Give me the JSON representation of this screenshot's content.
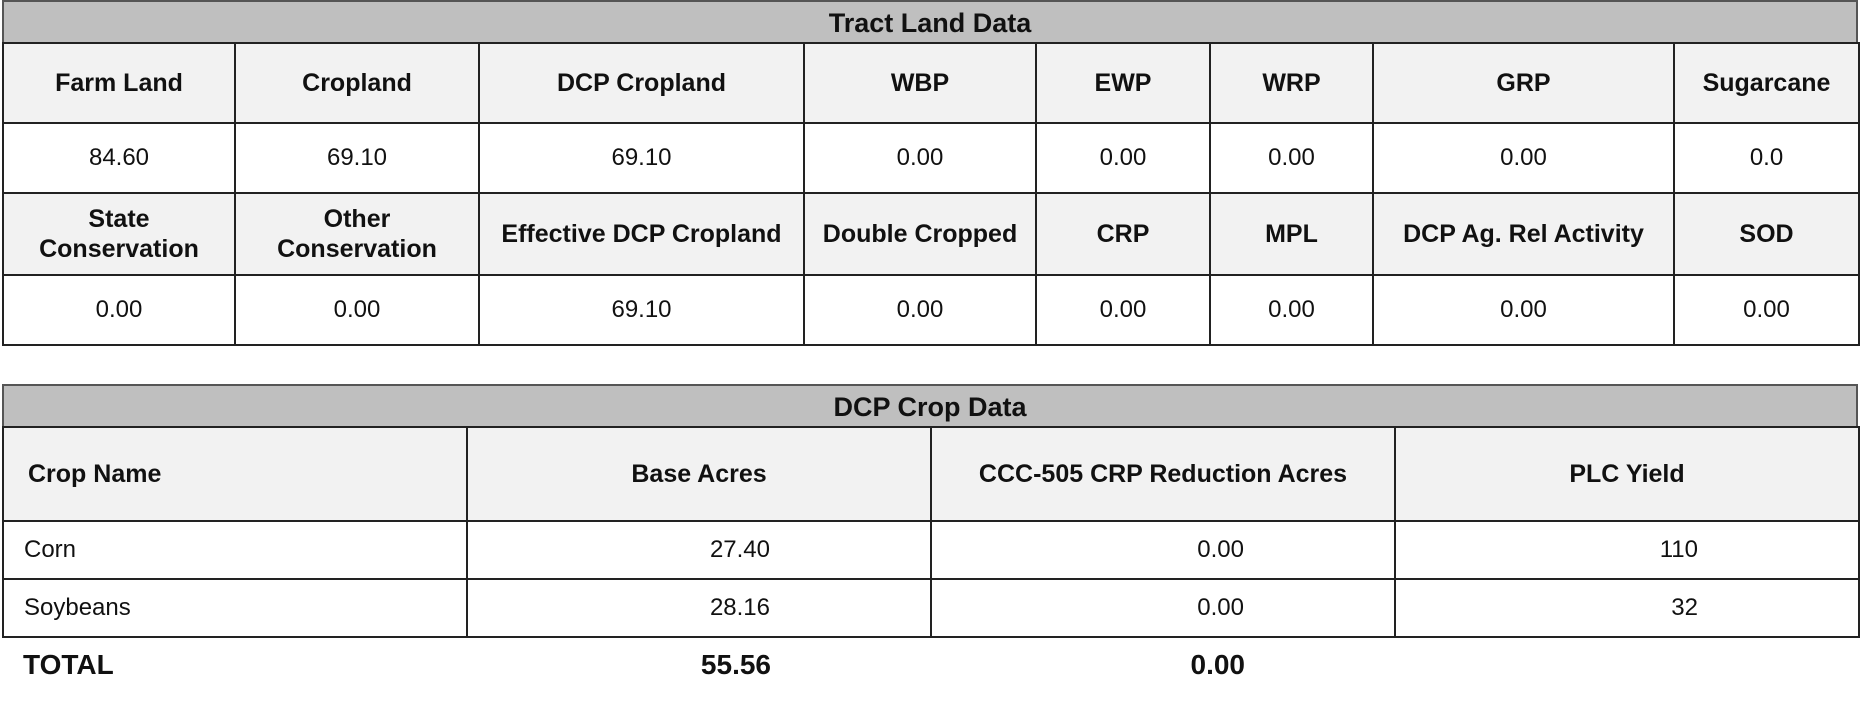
{
  "tract_land": {
    "title": "Tract Land Data",
    "row1_headers": [
      "Farm Land",
      "Cropland",
      "DCP Cropland",
      "WBP",
      "EWP",
      "WRP",
      "GRP",
      "Sugarcane"
    ],
    "row1_values": [
      "84.60",
      "69.10",
      "69.10",
      "0.00",
      "0.00",
      "0.00",
      "0.00",
      "0.0"
    ],
    "row2_headers": [
      "State Conservation",
      "Other Conservation",
      "Effective DCP Cropland",
      "Double Cropped",
      "CRP",
      "MPL",
      "DCP Ag. Rel Activity",
      "SOD"
    ],
    "row2_values": [
      "0.00",
      "0.00",
      "69.10",
      "0.00",
      "0.00",
      "0.00",
      "0.00",
      "0.00"
    ]
  },
  "dcp_crop": {
    "title": "DCP Crop Data",
    "headers": [
      "Crop Name",
      "Base Acres",
      "CCC-505 CRP Reduction Acres",
      "PLC Yield"
    ],
    "rows": [
      [
        "Corn",
        "27.40",
        "0.00",
        "110"
      ],
      [
        "Soybeans",
        "28.16",
        "0.00",
        "32"
      ]
    ],
    "total": [
      "TOTAL",
      "55.56",
      "0.00",
      ""
    ]
  }
}
